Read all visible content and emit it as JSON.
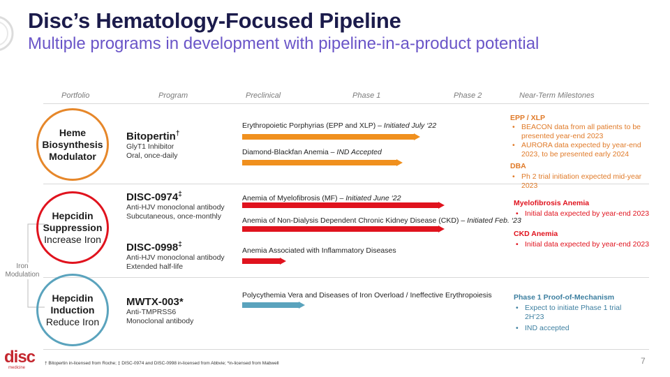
{
  "header": {
    "title": "Disc’s Hematology-Focused Pipeline",
    "subtitle": "Multiple programs in development with pipeline-in-a-product potential"
  },
  "columns": [
    "Portfolio",
    "Program",
    "Preclinical",
    "Phase 1",
    "Phase 2",
    "Near-Term Milestones"
  ],
  "portfolio": {
    "heme": [
      "Heme",
      "Biosynthesis",
      "Modulator"
    ],
    "suppression": [
      "Hepcidin",
      "Suppression",
      "Increase Iron"
    ],
    "induction": [
      "Hepcidin",
      "Induction",
      "Reduce Iron"
    ],
    "iron_modulation": [
      "Iron",
      "Modulation"
    ]
  },
  "programs": {
    "bitopertin": {
      "name": "Bitopertin",
      "mark": "†",
      "lines": [
        "GlyT1 Inhibitor",
        "Oral, once-daily"
      ]
    },
    "disc0974": {
      "name": "DISC-0974",
      "mark": "‡",
      "lines": [
        "Anti-HJV monoclonal antibody",
        "Subcutaneous, once-monthly"
      ]
    },
    "disc0998": {
      "name": "DISC-0998",
      "mark": "‡",
      "lines": [
        "Anti-HJV monoclonal antibody",
        "Extended half-life"
      ]
    },
    "mwtx003": {
      "name": "MWTX-003*",
      "lines": [
        "Anti-TMPRSS6",
        "Monoclonal antibody"
      ]
    }
  },
  "indications": [
    {
      "text": "Erythropoietic Porphyrias (EPP and XLP) – ",
      "status": "Initiated July ‘22",
      "progress_phase": 1.7,
      "color": "#f0901e"
    },
    {
      "text": "Diamond-Blackfan Anemia  – ",
      "status": "IND Accepted",
      "progress_phase": 1.53,
      "color": "#f0901e"
    },
    {
      "text": "Anemia of Myelofibrosis (MF) – ",
      "status": "Initiated June ‘22",
      "progress_phase": 1.93,
      "color": "#e0131e"
    },
    {
      "text": "Anemia of Non-Dialysis Dependent Chronic Kidney Disease (CKD) – ",
      "status": "Initiated Feb. ‘23",
      "progress_phase": 1.93,
      "color": "#e0131e"
    },
    {
      "text": "Anemia Associated with Inflammatory Diseases",
      "status": "",
      "progress_phase": 0.42,
      "color": "#e0131e"
    },
    {
      "text": "Polycythemia Vera and Diseases of Iron Overload / Ineffective Erythropoiesis",
      "status": "",
      "progress_phase": 0.6,
      "color": "#5aa3bd"
    }
  ],
  "milestones": {
    "epp": {
      "heading": "EPP / XLP",
      "items": [
        "BEACON data from all patients to be presented year-end 2023",
        "AURORA data expected by year-end 2023, to be presented early 2024"
      ],
      "color": "#e07a28"
    },
    "dba": {
      "heading": "DBA",
      "items": [
        "Ph 2 trial initiation expected mid-year 2023"
      ],
      "color": "#e07a28"
    },
    "mf": {
      "heading": "Myelofibrosis Anemia",
      "items": [
        "Initial data expected by year-end 2023"
      ],
      "color": "#e0131e"
    },
    "ckd": {
      "heading": "CKD Anemia",
      "items": [
        "Initial data expected by year-end 2023"
      ],
      "color": "#e0131e"
    },
    "poc": {
      "heading": "Phase 1 Proof-of-Mechanism",
      "items": [
        "Expect to initiate Phase 1 trial 2H’23",
        "IND accepted"
      ],
      "color": "#3d7fa0"
    }
  },
  "footer": {
    "footnote": "† Bitopertin in-licensed from Roche; ‡ DISC-0974 and DISC-0998 in-licensed from Abbvie; *in-licensed from Mabwell",
    "page_number": "7",
    "logo_text": "disc",
    "logo_sub": "medicine"
  },
  "colors": {
    "orange": "#e6872a",
    "red": "#e0131e",
    "teal": "#5aa3bd",
    "navy": "#1b1b4b",
    "purple": "#6a55c8"
  }
}
